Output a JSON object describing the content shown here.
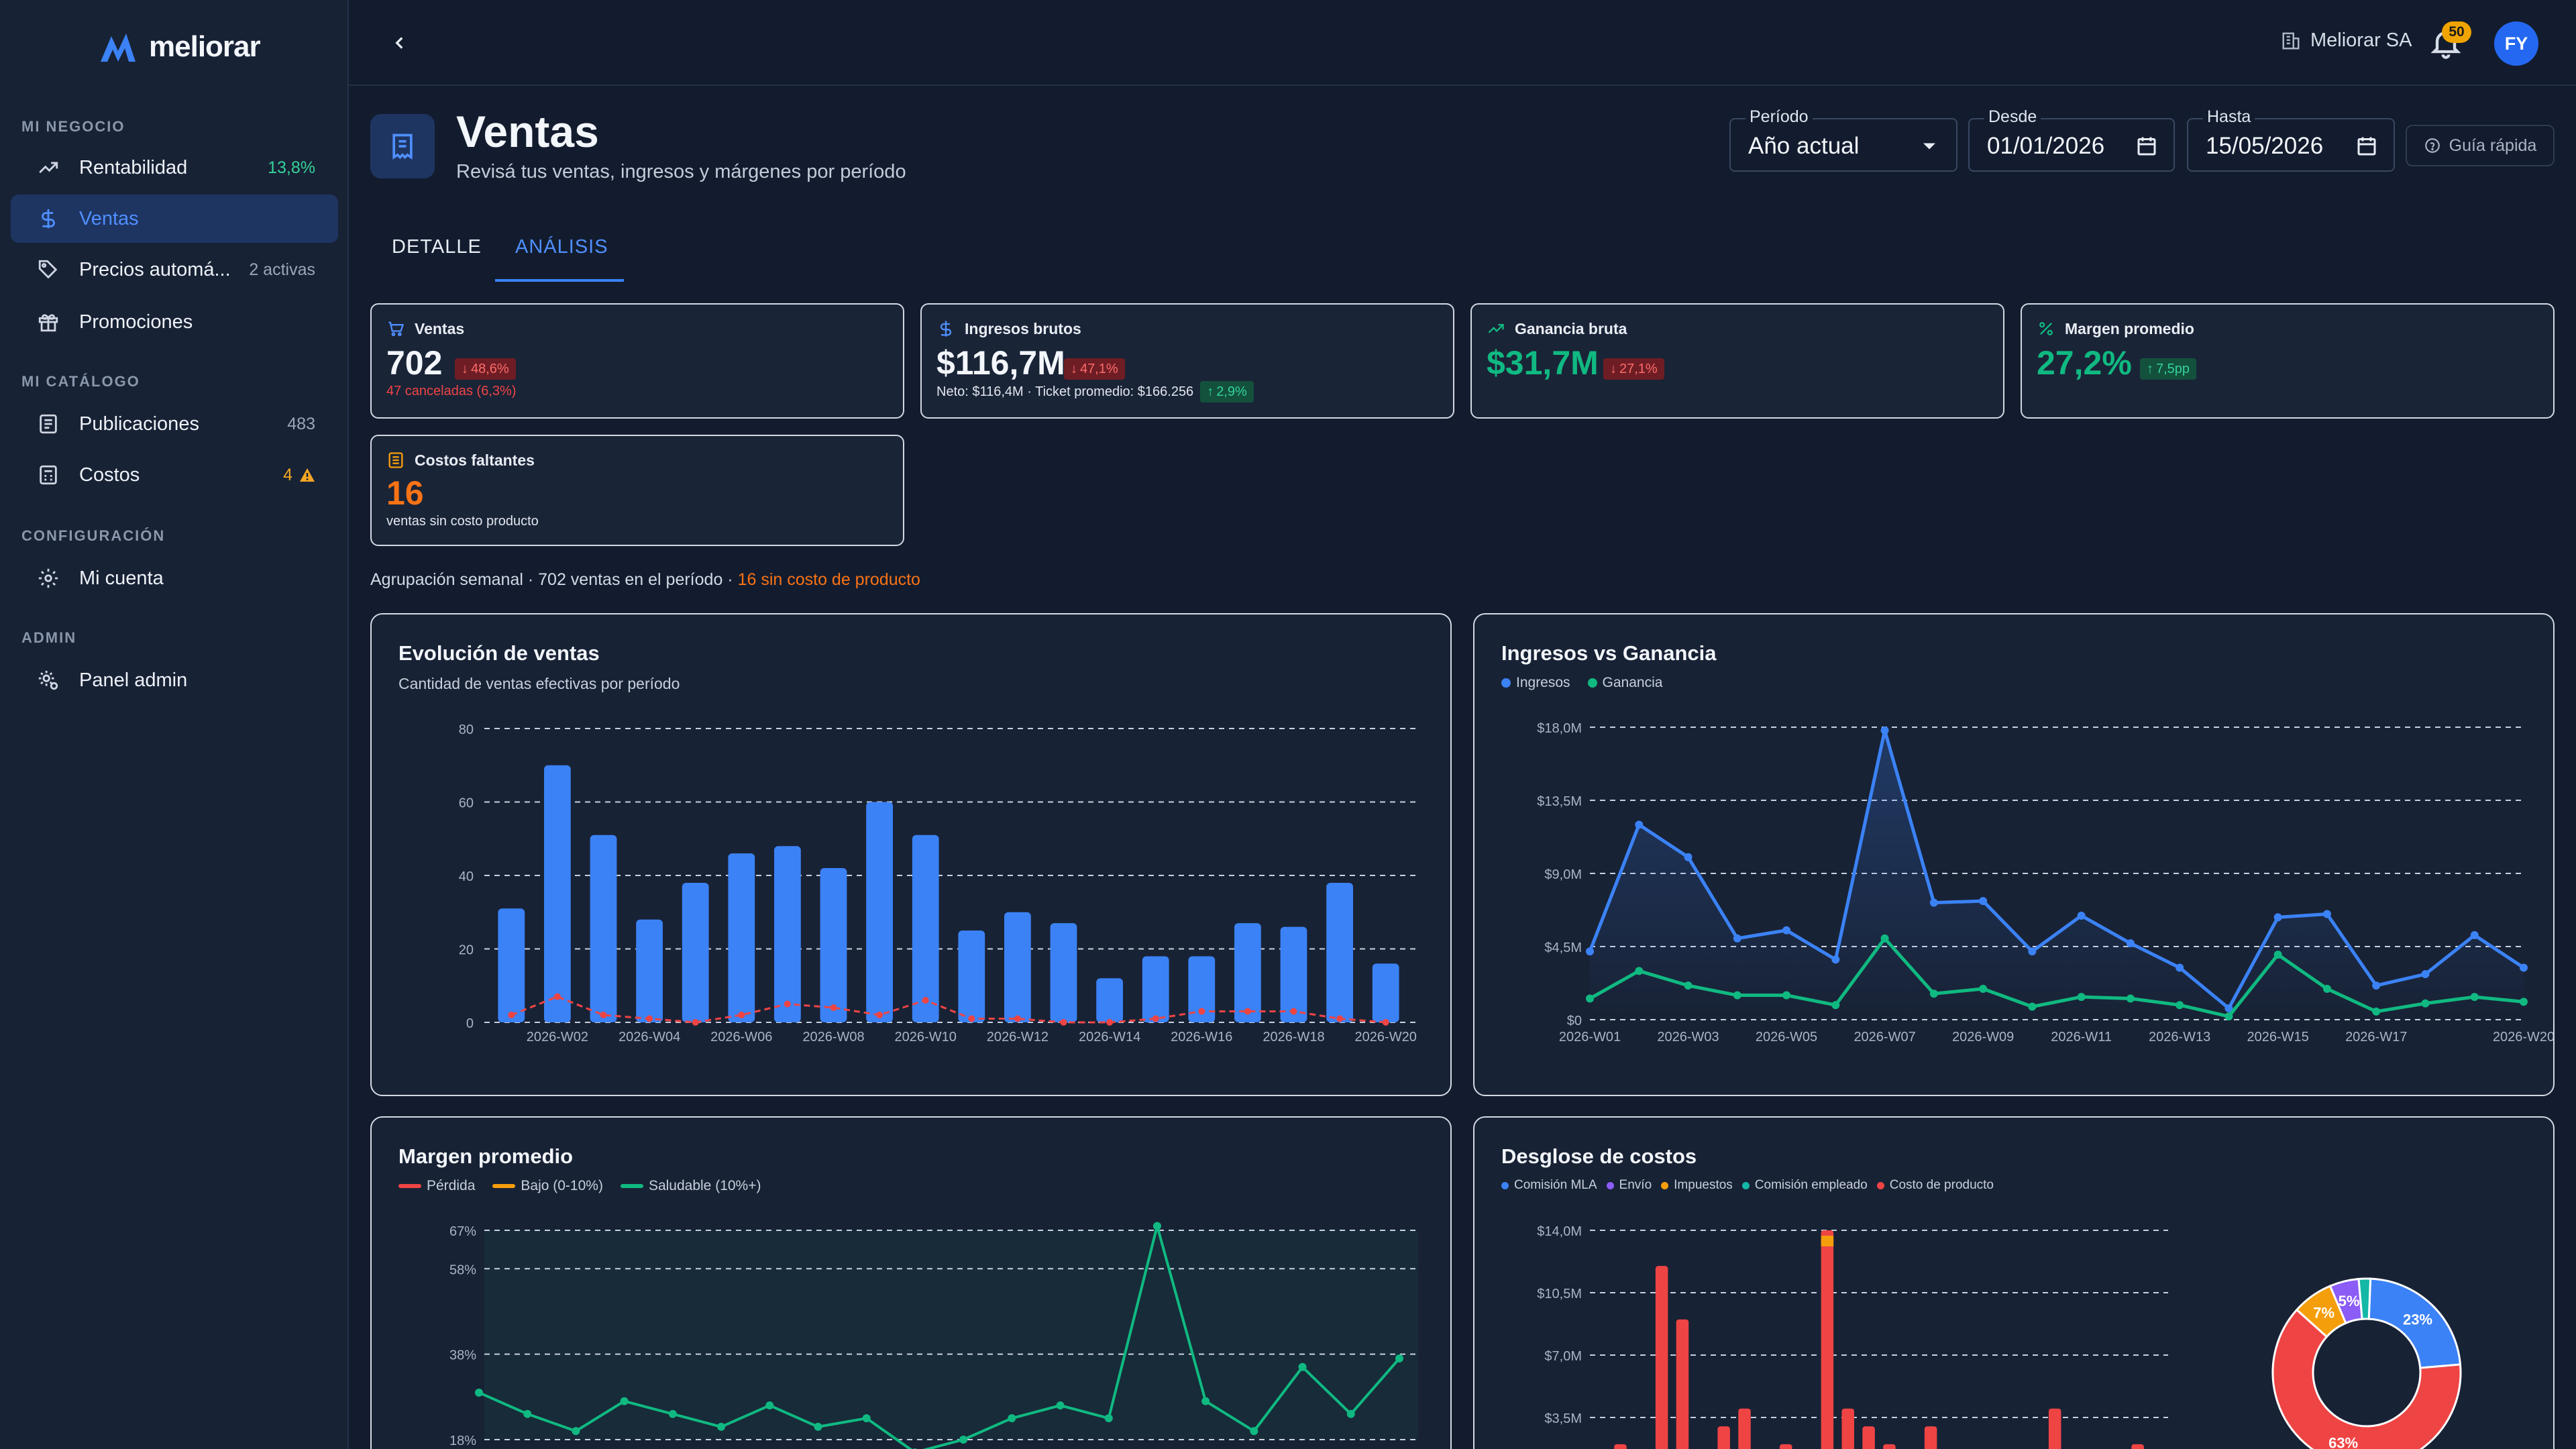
{
  "app": {
    "name": "meliorar"
  },
  "sidebar": {
    "sections": [
      "MI NEGOCIO",
      "MI CATÁLOGO",
      "CONFIGURACIÓN",
      "ADMIN"
    ],
    "items": [
      {
        "label": "Rentabilidad",
        "badge": "13,8%",
        "icon": "trend-icon"
      },
      {
        "label": "Ventas",
        "icon": "dollar-icon"
      },
      {
        "label": "Precios automá...",
        "badge": "2 activas",
        "icon": "tag-icon"
      },
      {
        "label": "Promociones",
        "icon": "gift-icon"
      },
      {
        "label": "Publicaciones",
        "badge": "483",
        "icon": "document-icon"
      },
      {
        "label": "Costos",
        "badge": "4",
        "icon": "calculator-icon"
      },
      {
        "label": "Mi cuenta",
        "icon": "gear-icon"
      },
      {
        "label": "Panel admin",
        "icon": "admin-gear-icon"
      }
    ]
  },
  "topbar": {
    "org": "Meliorar SA",
    "notifications": "50",
    "avatar": "FY"
  },
  "header": {
    "title": "Ventas",
    "subtitle": "Revisá tus ventas, ingresos y márgenes por período",
    "period_label": "Período",
    "period_value": "Año actual",
    "from_label": "Desde",
    "from_value": "01/01/2026",
    "to_label": "Hasta",
    "to_value": "15/05/2026",
    "guide": "Guía rápida"
  },
  "tabs": [
    "DETALLE",
    "ANÁLISIS"
  ],
  "kpis": {
    "ventas": {
      "label": "Ventas",
      "value": "702",
      "delta": "48,6%",
      "sub": "47 canceladas (6,3%)"
    },
    "ingresos": {
      "label": "Ingresos brutos",
      "value": "$116,7M",
      "delta": "47,1%",
      "sub": "Neto: $116,4M · Ticket promedio: $166.256",
      "sub_delta": "2,9%"
    },
    "ganancia": {
      "label": "Ganancia bruta",
      "value": "$31,7M",
      "delta": "27,1%"
    },
    "margen": {
      "label": "Margen promedio",
      "value": "27,2%",
      "delta": "7,5pp"
    },
    "faltantes": {
      "label": "Costos faltantes",
      "value": "16",
      "sub": "ventas sin costo producto"
    }
  },
  "summary": {
    "text": "Agrupación semanal · 702 ventas en el período · ",
    "warning": "16 sin costo de producto"
  },
  "colors": {
    "accent": "#3b82f6",
    "green": "#10b981",
    "red": "#ef4444",
    "orange": "#f97316"
  },
  "chart_data": [
    {
      "type": "bar",
      "title": "Evolución de ventas",
      "subtitle": "Cantidad de ventas efectivas por período",
      "categories": [
        "2026-W01",
        "2026-W02",
        "2026-W03",
        "2026-W04",
        "2026-W05",
        "2026-W06",
        "2026-W07",
        "2026-W08",
        "2026-W09",
        "2026-W10",
        "2026-W11",
        "2026-W12",
        "2026-W13",
        "2026-W14",
        "2026-W15",
        "2026-W16",
        "2026-W17",
        "2026-W18",
        "2026-W19",
        "2026-W20"
      ],
      "tick_labels": [
        "2026-W02",
        "2026-W04",
        "2026-W06",
        "2026-W08",
        "2026-W10",
        "2026-W12",
        "2026-W14",
        "2026-W16",
        "2026-W18",
        "2026-W20"
      ],
      "values": [
        31,
        70,
        51,
        28,
        38,
        46,
        48,
        42,
        60,
        51,
        25,
        30,
        27,
        12,
        18,
        18,
        27,
        26,
        38,
        16
      ],
      "secondary_line": [
        2,
        7,
        2,
        1,
        0,
        2,
        5,
        4,
        2,
        6,
        1,
        1,
        0,
        0,
        1,
        3,
        3,
        3,
        1,
        0
      ],
      "yticks": [
        0,
        20,
        40,
        60,
        80
      ],
      "ylim": [
        0,
        80
      ]
    },
    {
      "type": "line",
      "title": "Ingresos vs Ganancia",
      "categories": [
        "2026-W01",
        "2026-W02",
        "2026-W03",
        "2026-W04",
        "2026-W05",
        "2026-W06",
        "2026-W07",
        "2026-W08",
        "2026-W09",
        "2026-W10",
        "2026-W11",
        "2026-W12",
        "2026-W13",
        "2026-W14",
        "2026-W15",
        "2026-W16",
        "2026-W17",
        "2026-W18",
        "2026-W19",
        "2026-W20"
      ],
      "tick_labels": [
        "2026-W01",
        "2026-W03",
        "2026-W05",
        "2026-W07",
        "2026-W09",
        "2026-W11",
        "2026-W13",
        "2026-W15",
        "2026-W17",
        "2026-W20"
      ],
      "series": [
        {
          "name": "Ingresos",
          "color": "#3b82f6",
          "values": [
            4.2,
            12.0,
            10.0,
            5.0,
            5.5,
            3.7,
            17.8,
            7.2,
            7.3,
            4.2,
            6.4,
            4.7,
            3.2,
            0.7,
            6.3,
            6.5,
            2.1,
            2.8,
            5.2,
            3.2
          ]
        },
        {
          "name": "Ganancia",
          "color": "#10b981",
          "values": [
            1.3,
            3.0,
            2.1,
            1.5,
            1.5,
            0.9,
            5.0,
            1.6,
            1.9,
            0.8,
            1.4,
            1.3,
            0.9,
            0.2,
            4.0,
            1.9,
            0.5,
            1.0,
            1.4,
            1.1
          ]
        }
      ],
      "yticks": [
        "$0",
        "$4,5M",
        "$9,0M",
        "$13,5M",
        "$18,0M"
      ],
      "ylim": [
        0,
        18
      ]
    },
    {
      "type": "line",
      "title": "Margen promedio",
      "legend": [
        {
          "name": "Pérdida",
          "color": "#ef4444"
        },
        {
          "name": "Bajo (0-10%)",
          "color": "#f59e0b"
        },
        {
          "name": "Saludable (10%+)",
          "color": "#10b981"
        }
      ],
      "values": [
        29,
        24,
        20,
        27,
        24,
        21,
        26,
        21,
        23,
        15,
        18,
        23,
        26,
        23,
        68,
        27,
        20,
        35,
        24,
        37
      ],
      "yticks": [
        "18%",
        "38%",
        "58%",
        "67%"
      ],
      "ylim": [
        18,
        67
      ]
    },
    {
      "type": "bar",
      "title": "Desglose de costos",
      "legend": [
        "Comisión MLA",
        "Envío",
        "Impuestos",
        "Comisión empleado",
        "Costo de producto"
      ],
      "values": [
        2,
        0,
        12,
        9,
        0,
        3,
        4,
        0,
        2,
        0,
        14,
        4,
        3,
        2,
        0,
        3,
        0,
        0,
        0,
        0,
        0,
        4,
        0,
        0,
        0,
        2
      ],
      "yticks": [
        "$3,5M",
        "$7,0M",
        "$10,5M",
        "$14,0M"
      ],
      "donut": [
        {
          "label": "23%",
          "value": 23,
          "color": "#3b82f6"
        },
        {
          "label": "63%",
          "value": 63,
          "color": "#ef4444"
        },
        {
          "label": "7%",
          "value": 7,
          "color": "#f59e0b"
        },
        {
          "label": "5%",
          "value": 5,
          "color": "#8b5cf6"
        },
        {
          "label": "",
          "value": 2,
          "color": "#14b8a6"
        }
      ]
    }
  ]
}
